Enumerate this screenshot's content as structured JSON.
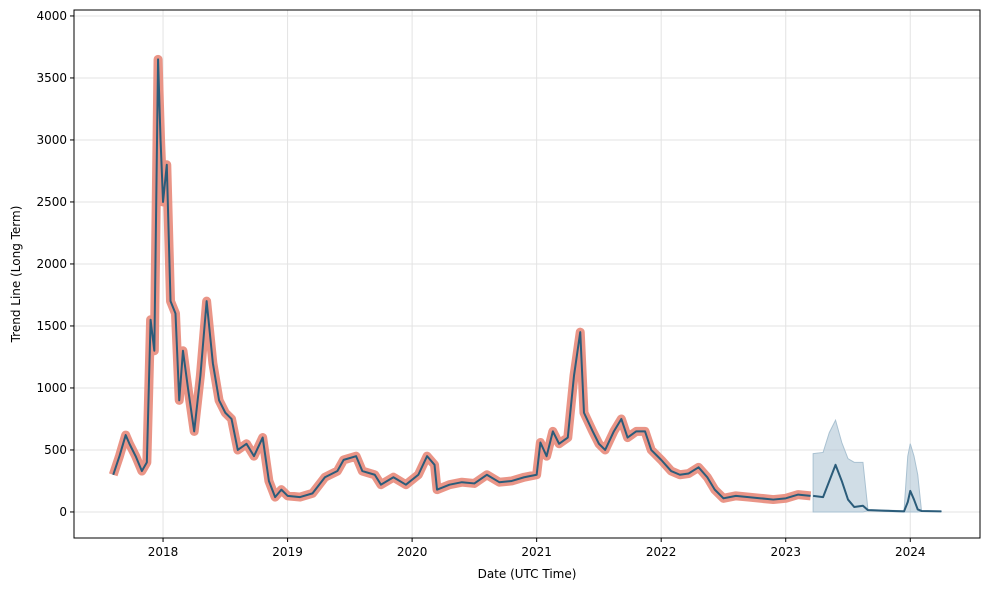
{
  "chart_data": {
    "type": "line",
    "xlabel": "Date (UTC Time)",
    "ylabel": "Trend Line (Long Term)",
    "xlim": [
      2017.285,
      2024.56
    ],
    "ylim": [
      -210,
      4048
    ],
    "xticks": [
      2018,
      2019,
      2020,
      2021,
      2022,
      2023,
      2024
    ],
    "yticks": [
      0,
      500,
      1000,
      1500,
      2000,
      2500,
      3000,
      3500,
      4000
    ],
    "grid": true,
    "series": [
      {
        "color": "#2b5c7a",
        "halo_color": "#e8897a",
        "x": [
          2017.6,
          2017.65,
          2017.7,
          2017.73,
          2017.78,
          2017.83,
          2017.87,
          2017.9,
          2017.93,
          2017.96,
          2017.98,
          2018.0,
          2018.03,
          2018.06,
          2018.1,
          2018.13,
          2018.16,
          2018.2,
          2018.25,
          2018.3,
          2018.35,
          2018.4,
          2018.45,
          2018.5,
          2018.55,
          2018.6,
          2018.67,
          2018.73,
          2018.8,
          2018.85,
          2018.9,
          2018.95,
          2019.0,
          2019.1,
          2019.2,
          2019.3,
          2019.4,
          2019.45,
          2019.55,
          2019.6,
          2019.7,
          2019.75,
          2019.85,
          2019.95,
          2020.05,
          2020.12,
          2020.18,
          2020.2,
          2020.3,
          2020.4,
          2020.5,
          2020.6,
          2020.7,
          2020.8,
          2020.9,
          2021.0,
          2021.03,
          2021.08,
          2021.13,
          2021.18,
          2021.25,
          2021.3,
          2021.35,
          2021.38,
          2021.45,
          2021.5,
          2021.55,
          2021.62,
          2021.68,
          2021.73,
          2021.8,
          2021.87,
          2021.92,
          2022.0,
          2022.08,
          2022.15,
          2022.22,
          2022.3,
          2022.37,
          2022.43,
          2022.5,
          2022.6,
          2022.7,
          2022.8,
          2022.9,
          2023.0,
          2023.1,
          2023.2
        ],
        "values": [
          300,
          450,
          620,
          550,
          450,
          330,
          400,
          1550,
          1300,
          3650,
          3000,
          2500,
          2800,
          1700,
          1600,
          900,
          1300,
          1000,
          650,
          1100,
          1700,
          1200,
          900,
          800,
          750,
          500,
          550,
          450,
          600,
          250,
          120,
          180,
          130,
          120,
          150,
          280,
          330,
          420,
          450,
          330,
          300,
          220,
          280,
          220,
          300,
          450,
          380,
          180,
          220,
          240,
          230,
          300,
          240,
          250,
          280,
          300,
          560,
          450,
          650,
          550,
          600,
          1100,
          1450,
          800,
          650,
          550,
          500,
          650,
          750,
          600,
          650,
          650,
          500,
          420,
          330,
          300,
          310,
          360,
          280,
          180,
          110,
          130,
          120,
          110,
          100,
          110,
          140,
          130
        ]
      },
      {
        "color": "#2b5c7a",
        "x": [
          2023.22,
          2023.3,
          2023.35,
          2023.4,
          2023.45,
          2023.5,
          2023.55,
          2023.62,
          2023.66,
          2023.8,
          2023.95,
          2023.98,
          2024.0,
          2024.03,
          2024.06,
          2024.09,
          2024.25
        ],
        "values": [
          130,
          120,
          250,
          380,
          250,
          100,
          40,
          50,
          15,
          10,
          5,
          80,
          170,
          100,
          20,
          8,
          5
        ]
      }
    ],
    "band": {
      "color": "#a9c1d1",
      "x": [
        2023.22,
        2023.3,
        2023.35,
        2023.4,
        2023.45,
        2023.5,
        2023.55,
        2023.62,
        2023.66,
        2023.8,
        2023.95,
        2023.98,
        2024.0,
        2024.03,
        2024.06,
        2024.09,
        2024.25
      ],
      "upper": [
        470,
        480,
        640,
        740,
        560,
        430,
        400,
        400,
        20,
        15,
        10,
        450,
        550,
        450,
        300,
        10,
        6
      ],
      "lower": [
        0,
        0,
        0,
        0,
        0,
        0,
        0,
        0,
        10,
        5,
        0,
        0,
        0,
        0,
        0,
        5,
        4
      ]
    }
  }
}
